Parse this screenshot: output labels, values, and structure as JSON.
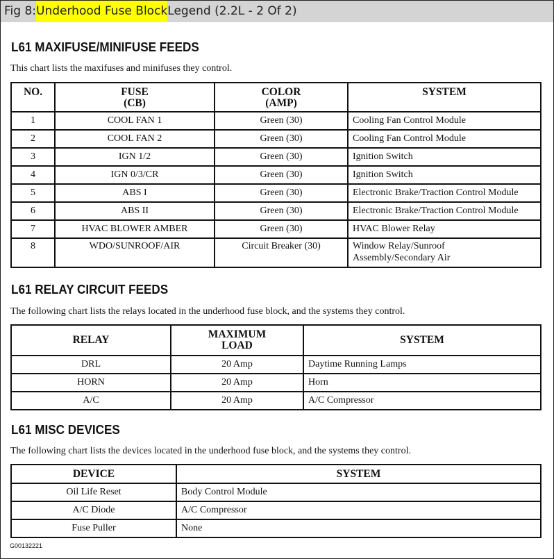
{
  "title": {
    "prefix": "Fig 8: ",
    "highlighted": "Underhood Fuse Block",
    "suffix": " Legend (2.2L - 2 Of 2)"
  },
  "sections": [
    {
      "heading": "L61 MAXIFUSE/MINIFUSE FEEDS",
      "description": "This chart lists the maxifuses and minifuses they control.",
      "headers": [
        [
          "NO."
        ],
        [
          "FUSE",
          "(CB)"
        ],
        [
          "COLOR",
          "(AMP)"
        ],
        [
          "SYSTEM"
        ]
      ],
      "rows": [
        [
          "1",
          "COOL FAN 1",
          "Green (30)",
          "Cooling Fan Control Module"
        ],
        [
          "2",
          "COOL FAN 2",
          "Green (30)",
          "Cooling Fan Control Module"
        ],
        [
          "3",
          "IGN 1/2",
          "Green (30)",
          "Ignition Switch"
        ],
        [
          "4",
          "IGN 0/3/CR",
          "Green (30)",
          "Ignition Switch"
        ],
        [
          "5",
          "ABS I",
          "Green (30)",
          "Electronic Brake/Traction Control Module"
        ],
        [
          "6",
          "ABS II",
          "Green (30)",
          "Electronic Brake/Traction Control Module"
        ],
        [
          "7",
          "HVAC BLOWER AMBER",
          "Green (30)",
          "HVAC Blower Relay"
        ],
        [
          "8",
          "WDO/SUNROOF/AIR",
          "Circuit Breaker (30)",
          "Window Relay/Sunroof Assembly/Secondary Air"
        ]
      ]
    },
    {
      "heading": "L61 RELAY CIRCUIT FEEDS",
      "description": "The following chart lists the relays located in the underhood fuse block, and the systems they control.",
      "headers": [
        [
          "RELAY"
        ],
        [
          "MAXIMUM",
          "LOAD"
        ],
        [
          "SYSTEM"
        ]
      ],
      "rows": [
        [
          "DRL",
          "20 Amp",
          "Daytime Running Lamps"
        ],
        [
          "HORN",
          "20 Amp",
          "Horn"
        ],
        [
          "A/C",
          "20 Amp",
          "A/C Compressor"
        ]
      ]
    },
    {
      "heading": "L61 MISC DEVICES",
      "description": "The following chart lists the devices located in the underhood fuse block, and the systems they control.",
      "headers": [
        [
          "DEVICE"
        ],
        [
          "SYSTEM"
        ]
      ],
      "rows": [
        [
          "Oil Life Reset",
          "Body Control Module"
        ],
        [
          "A/C Diode",
          "A/C Compressor"
        ],
        [
          "Fuse Puller",
          "None"
        ]
      ]
    }
  ],
  "figure_code": "G00132221",
  "colors": {
    "highlight": "#ffff00",
    "titlebar": "#d4d4d4"
  }
}
